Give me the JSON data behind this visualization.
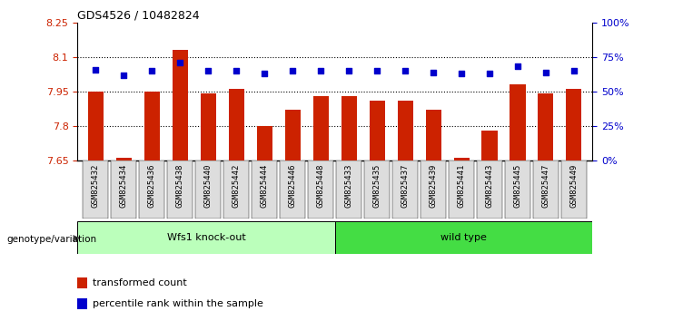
{
  "title": "GDS4526 / 10482824",
  "categories": [
    "GSM825432",
    "GSM825434",
    "GSM825436",
    "GSM825438",
    "GSM825440",
    "GSM825442",
    "GSM825444",
    "GSM825446",
    "GSM825448",
    "GSM825433",
    "GSM825435",
    "GSM825437",
    "GSM825439",
    "GSM825441",
    "GSM825443",
    "GSM825445",
    "GSM825447",
    "GSM825449"
  ],
  "bar_values": [
    7.95,
    7.66,
    7.95,
    8.13,
    7.94,
    7.96,
    7.8,
    7.87,
    7.93,
    7.93,
    7.91,
    7.91,
    7.87,
    7.66,
    7.78,
    7.98,
    7.94,
    7.96
  ],
  "dot_values": [
    66,
    62,
    65,
    71,
    65,
    65,
    63,
    65,
    65,
    65,
    65,
    65,
    64,
    63,
    63,
    68,
    64,
    65
  ],
  "ylim_left": [
    7.65,
    8.25
  ],
  "ylim_right": [
    0,
    100
  ],
  "yticks_left": [
    7.65,
    7.8,
    7.95,
    8.1,
    8.25
  ],
  "yticks_right": [
    0,
    25,
    50,
    75,
    100
  ],
  "ytick_labels_right": [
    "0%",
    "25%",
    "50%",
    "75%",
    "100%"
  ],
  "bar_color": "#cc2200",
  "dot_color": "#0000cc",
  "group1_label": "Wfs1 knock-out",
  "group2_label": "wild type",
  "group1_color": "#bbffbb",
  "group2_color": "#44dd44",
  "group1_n": 9,
  "group2_n": 9,
  "genotype_label": "genotype/variation",
  "legend_bar_label": "transformed count",
  "legend_dot_label": "percentile rank within the sample",
  "grid_dotted_values": [
    7.8,
    7.95,
    8.1
  ],
  "xtick_bg": "#dddddd"
}
